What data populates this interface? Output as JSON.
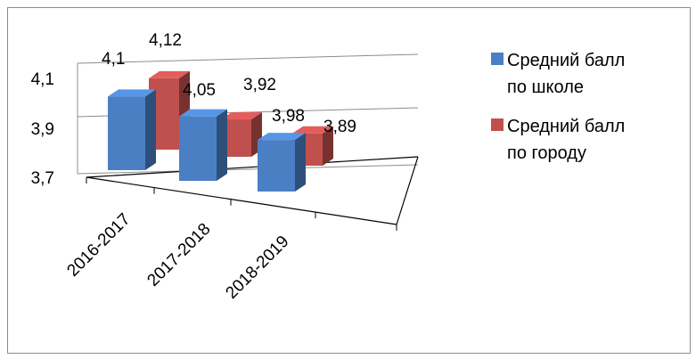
{
  "chart_data": {
    "type": "bar",
    "style": "3d-column",
    "categories": [
      "2016-2017",
      "2017-2018",
      "2018-2019"
    ],
    "series": [
      {
        "name": "Средний балл по школе",
        "color": "#4a7fc4",
        "values": [
          4.1,
          4.05,
          3.98
        ],
        "labels": [
          "4,1",
          "4,05",
          "3,98"
        ]
      },
      {
        "name": "Средний балл по городу",
        "color": "#c0504d",
        "values": [
          4.12,
          3.92,
          3.89
        ],
        "labels": [
          "4,12",
          "3,92",
          "3,89"
        ]
      }
    ],
    "yticks": [
      "3,7",
      "3,9",
      "4,1"
    ],
    "ylim": [
      3.7,
      4.1
    ],
    "grid": true,
    "legend": "right",
    "legend_lines": [
      [
        "Средний балл",
        "по школе"
      ],
      [
        "Средний балл",
        "по городу"
      ]
    ]
  }
}
